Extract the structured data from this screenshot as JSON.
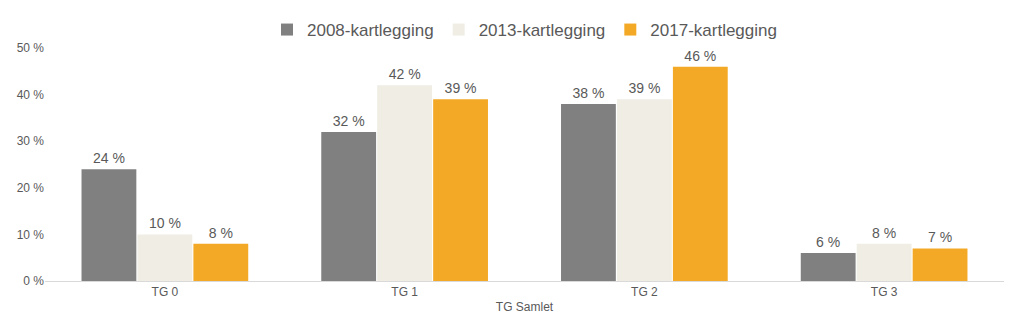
{
  "chart_data": {
    "type": "bar",
    "categories": [
      "TG 0",
      "TG 1",
      "TG 2",
      "TG 3"
    ],
    "x_label": "TG Samlet",
    "series": [
      {
        "name": "2008-kartlegging",
        "color": "#808080",
        "values": [
          24,
          32,
          38,
          6
        ],
        "value_labels": [
          "24 %",
          "32 %",
          "38 %",
          "6 %"
        ]
      },
      {
        "name": "2013-kartlegging",
        "color": "#efede4",
        "values": [
          10,
          42,
          39,
          8
        ],
        "value_labels": [
          "10 %",
          "42 %",
          "39 %",
          "8 %"
        ]
      },
      {
        "name": "2017-kartlegging",
        "color": "#f4a926",
        "values": [
          8,
          39,
          46,
          7
        ],
        "value_labels": [
          "8 %",
          "39 %",
          "46 %",
          "7 %"
        ]
      }
    ],
    "ylim": [
      0,
      50
    ],
    "yticks": [
      {
        "value": 0,
        "label": "0 %"
      },
      {
        "value": 10,
        "label": "10 %"
      },
      {
        "value": 20,
        "label": "20 %"
      },
      {
        "value": 30,
        "label": "30 %"
      },
      {
        "value": 40,
        "label": "40 %"
      },
      {
        "value": 50,
        "label": "50 %"
      }
    ],
    "grid": false,
    "legend": "top",
    "data_labels": true
  }
}
